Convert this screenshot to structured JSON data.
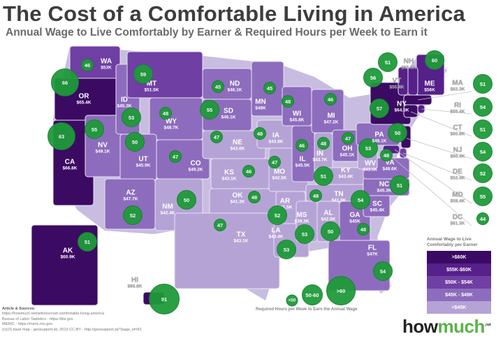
{
  "header": {
    "title": "The Cost of a Comfortable Living in America",
    "subtitle": "Annual Wage to Live Comfortably by Earner & Required Hours per Week to Earn it"
  },
  "colors": {
    "tier_gt60": "#3b0a63",
    "tier_55_60": "#56208a",
    "tier_50_54": "#6f3fa3",
    "tier_45_49": "#8d6cbd",
    "tier_lt45": "#b5a3d6",
    "bubble": "#1f9a3a"
  },
  "states": [
    {
      "abbr": "WA",
      "wage": "$53K",
      "hours": "46",
      "tier": "tier_50_54"
    },
    {
      "abbr": "OR",
      "wage": "$65.4K",
      "hours": "66",
      "tier": "tier_gt60"
    },
    {
      "abbr": "CA",
      "wage": "$66.8K",
      "hours": "63",
      "tier": "tier_gt60"
    },
    {
      "abbr": "NV",
      "wage": "$49.1K",
      "hours": "55",
      "tier": "tier_45_49"
    },
    {
      "abbr": "ID",
      "wage": "$45.3K",
      "hours": "53",
      "tier": "tier_45_49"
    },
    {
      "abbr": "MT",
      "wage": "$51.5K",
      "hours": "59",
      "tier": "tier_50_54"
    },
    {
      "abbr": "WY",
      "wage": "$48.7K",
      "hours": "48",
      "tier": "tier_45_49"
    },
    {
      "abbr": "UT",
      "wage": "$45.9K",
      "hours": "50",
      "tier": "tier_45_49"
    },
    {
      "abbr": "CO",
      "wage": "$49.2K",
      "hours": "47",
      "tier": "tier_45_49"
    },
    {
      "abbr": "AZ",
      "wage": "$47.7K",
      "hours": "52",
      "tier": "tier_45_49"
    },
    {
      "abbr": "NM",
      "wage": "$42.4K",
      "hours": "50",
      "tier": "tier_lt45"
    },
    {
      "abbr": "ND",
      "wage": "$46.1K",
      "hours": "45",
      "tier": "tier_45_49"
    },
    {
      "abbr": "SD",
      "wage": "$46.1K",
      "hours": "55",
      "tier": "tier_45_49"
    },
    {
      "abbr": "NE",
      "wage": "$43.6K",
      "hours": "47",
      "tier": "tier_lt45"
    },
    {
      "abbr": "KS",
      "wage": "$43.1K",
      "hours": "46",
      "tier": "tier_lt45"
    },
    {
      "abbr": "OK",
      "wage": "$41.3K",
      "hours": "48",
      "tier": "tier_lt45"
    },
    {
      "abbr": "TX",
      "wage": "$43.1K",
      "hours": "47",
      "tier": "tier_lt45"
    },
    {
      "abbr": "MN",
      "wage": "$48K",
      "hours": "45",
      "tier": "tier_45_49"
    },
    {
      "abbr": "IA",
      "wage": "$43.8K",
      "hours": "48",
      "tier": "tier_lt45"
    },
    {
      "abbr": "MO",
      "wage": "$42.5K",
      "hours": "47",
      "tier": "tier_lt45"
    },
    {
      "abbr": "AR",
      "wage": "$41.5K",
      "hours": "52",
      "tier": "tier_lt45"
    },
    {
      "abbr": "LA",
      "wage": "$43.4K",
      "hours": "53",
      "tier": "tier_lt45"
    },
    {
      "abbr": "WI",
      "wage": "$45.8K",
      "hours": "48",
      "tier": "tier_45_49"
    },
    {
      "abbr": "IL",
      "wage": "$45.5K",
      "hours": "46",
      "tier": "tier_45_49"
    },
    {
      "abbr": "MI",
      "wage": "$47.2K",
      "hours": "46",
      "tier": "tier_45_49"
    },
    {
      "abbr": "IN",
      "wage": "$43.7K",
      "hours": "48",
      "tier": "tier_lt45"
    },
    {
      "abbr": "OH",
      "wage": "$45.1K",
      "hours": "47",
      "tier": "tier_45_49"
    },
    {
      "abbr": "KY",
      "wage": "$43.4K",
      "hours": "51",
      "tier": "tier_lt45"
    },
    {
      "abbr": "TN",
      "wage": "$41.9K",
      "hours": "48",
      "tier": "tier_lt45"
    },
    {
      "abbr": "MS",
      "wage": "$39.3K",
      "hours": "53",
      "tier": "tier_lt45"
    },
    {
      "abbr": "AL",
      "wage": "$42.5K",
      "hours": "50",
      "tier": "tier_lt45"
    },
    {
      "abbr": "GA",
      "wage": "$45K",
      "hours": "48",
      "tier": "tier_45_49"
    },
    {
      "abbr": "FL",
      "wage": "$47K",
      "hours": "54",
      "tier": "tier_45_49"
    },
    {
      "abbr": "SC",
      "wage": "$45.4K",
      "hours": "54",
      "tier": "tier_45_49"
    },
    {
      "abbr": "NC",
      "wage": "$45.3K",
      "hours": "51",
      "tier": "tier_45_49"
    },
    {
      "abbr": "VA",
      "wage": "$48.6K",
      "hours": "48",
      "tier": "tier_45_49"
    },
    {
      "abbr": "WV",
      "wage": "$43.5K",
      "hours": "53",
      "tier": "tier_lt45"
    },
    {
      "abbr": "PA",
      "wage": "$48.1K",
      "hours": "50",
      "tier": "tier_45_49"
    },
    {
      "abbr": "NY",
      "wage": "$64.5K",
      "hours": "57",
      "tier": "tier_gt60"
    },
    {
      "abbr": "ME",
      "wage": "$56K",
      "hours": "60",
      "tier": "tier_55_60"
    },
    {
      "abbr": "NH",
      "wage": "$55.6K",
      "hours": "51",
      "tier": "tier_55_60"
    },
    {
      "abbr": "VT",
      "wage": "$55.4K",
      "hours": "56",
      "tier": "tier_55_60"
    },
    {
      "abbr": "MA",
      "wage": "$62.3K",
      "hours": "51",
      "tier": "tier_gt60"
    },
    {
      "abbr": "RI",
      "wage": "$55.4K",
      "hours": "54",
      "tier": "tier_55_60"
    },
    {
      "abbr": "CT",
      "wage": "$60.8K",
      "hours": "51",
      "tier": "tier_gt60"
    },
    {
      "abbr": "NJ",
      "wage": "$60.4K",
      "hours": "54",
      "tier": "tier_gt60"
    },
    {
      "abbr": "DE",
      "wage": "$52.4K",
      "hours": "52",
      "tier": "tier_50_54"
    },
    {
      "abbr": "MD",
      "wage": "$58.4K",
      "hours": "55",
      "tier": "tier_55_60"
    },
    {
      "abbr": "DC",
      "wage": "$61.3K",
      "hours": "44",
      "tier": "tier_gt60"
    },
    {
      "abbr": "AK",
      "wage": "$60.9K",
      "hours": "51",
      "tier": "tier_gt60"
    },
    {
      "abbr": "HI",
      "wage": "$66.8K",
      "hours": "91",
      "tier": "tier_gt60"
    }
  ],
  "wage_legend": {
    "title": "Annual Wage to Live Comfortably per Earner",
    "items": [
      {
        "label": ">$60K",
        "tier": "tier_gt60"
      },
      {
        "label": "$55K-$60K",
        "tier": "tier_55_60"
      },
      {
        "label": "$50K - $54K",
        "tier": "tier_50_54"
      },
      {
        "label": "$45K - $49K",
        "tier": "tier_45_49"
      },
      {
        "label": "<$45K",
        "tier": "tier_lt45"
      }
    ]
  },
  "hours_legend": {
    "caption": "Required Hours per Week to Earn the Annual Wage",
    "items": [
      "<50",
      "50-60",
      ">60"
    ]
  },
  "sources": {
    "heading": "Article & Sources:",
    "lines": [
      "https://howmuch.net/articles/cost-comfortable-living-america",
      "Bureau of Labor Statistics - https://bls.gov",
      "MERIC - https://meric.mo.gov",
      "(c)US base map - geosupport.sk, 2019 CC-BY - http://geosupport.sk/?page_id=81"
    ]
  },
  "logo": {
    "part1": "how",
    "part2": "much",
    "suffix": ".net"
  }
}
